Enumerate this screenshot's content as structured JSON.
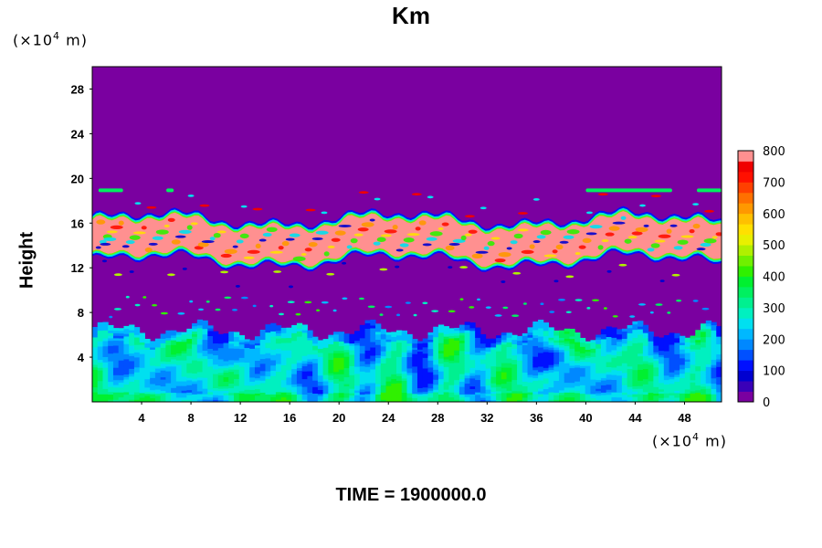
{
  "chart_data": {
    "type": "heatmap",
    "title": "Km",
    "ylabel": "Height",
    "xlabel": "",
    "x_unit": {
      "prefix": "(×10",
      "exp": "4",
      "suffix": " m)"
    },
    "y_unit": {
      "prefix": "(×10",
      "exp": "4",
      "suffix": " m)"
    },
    "xlim": [
      0,
      51
    ],
    "ylim": [
      0,
      30
    ],
    "x_ticks": [
      4,
      8,
      12,
      16,
      20,
      24,
      28,
      32,
      36,
      40,
      44,
      48
    ],
    "y_ticks": [
      4,
      8,
      12,
      16,
      20,
      24,
      28
    ],
    "colorbar": {
      "range": [
        0,
        800
      ],
      "ticks": [
        0,
        100,
        200,
        300,
        400,
        500,
        600,
        700,
        800
      ],
      "colors": [
        "#7a00a0",
        "#3a00b8",
        "#0000d0",
        "#0010ff",
        "#0050ff",
        "#0088ff",
        "#00b8ff",
        "#00e0f0",
        "#00f0c0",
        "#00f090",
        "#00f060",
        "#00f030",
        "#30f000",
        "#70f000",
        "#b0f000",
        "#e8f000",
        "#ffe000",
        "#ffc000",
        "#ff9800",
        "#ff7000",
        "#ff4000",
        "#ff1000",
        "#f00000",
        "#ff9090"
      ]
    },
    "regions": [
      {
        "name": "upper-background",
        "y_range": [
          17,
          30
        ],
        "value": 0
      },
      {
        "name": "turbulent-layer",
        "y_range": [
          13,
          16
        ],
        "value": 800
      },
      {
        "name": "mid-background",
        "y_range": [
          8,
          13
        ],
        "value": 0
      },
      {
        "name": "lower-mixed-layer",
        "y_range": [
          0,
          7
        ],
        "value_range": [
          100,
          400
        ]
      }
    ]
  },
  "footer": {
    "time_label": "TIME = 1900000.0"
  }
}
